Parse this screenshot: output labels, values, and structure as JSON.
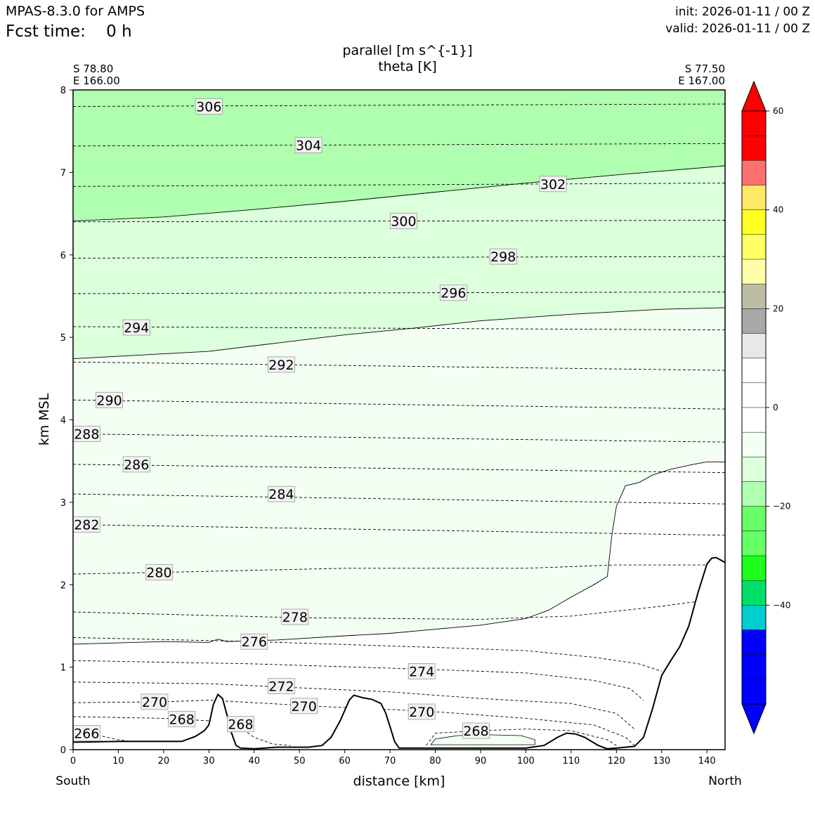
{
  "header": {
    "model": "MPAS-8.3.0 for AMPS",
    "fcst_time": "Fcst time:    0 h",
    "init": "init: 2026-01-11 / 00 Z",
    "valid": "valid: 2026-01-11 / 00 Z"
  },
  "chart_data": {
    "type": "contour-cross-section",
    "title_line1": "parallel [m s^{-1}]",
    "title_line2": "theta [K]",
    "xlabel": "distance [km]",
    "ylabel": "km MSL",
    "xlim": [
      0,
      144
    ],
    "ylim": [
      0,
      8
    ],
    "x_ticks": [
      0,
      10,
      20,
      30,
      40,
      50,
      60,
      70,
      80,
      90,
      100,
      110,
      120,
      130,
      140
    ],
    "y_ticks": [
      0,
      1,
      2,
      3,
      4,
      5,
      6,
      7,
      8
    ],
    "endpoints": {
      "left": {
        "lat": "S 78.80",
        "lon": "E 166.00",
        "dir": "South"
      },
      "right": {
        "lat": "S 77.50",
        "lon": "E 167.00",
        "dir": "North"
      }
    },
    "fill_bands": [
      {
        "range": "-20 to -15",
        "color": "#b0ffb0"
      },
      {
        "range": "-15 to -10",
        "color": "#dcffdc"
      },
      {
        "range": "-10 to -5",
        "color": "#f2fff2"
      },
      {
        "range": "-5 to 0",
        "color": "#ffffff"
      }
    ],
    "fill_boundaries": [
      {
        "name": "-15",
        "points": [
          [
            0,
            6.41
          ],
          [
            20,
            6.46
          ],
          [
            40,
            6.55
          ],
          [
            60,
            6.65
          ],
          [
            80,
            6.76
          ],
          [
            100,
            6.87
          ],
          [
            120,
            6.97
          ],
          [
            144,
            7.08
          ]
        ]
      },
      {
        "name": "-10",
        "points": [
          [
            0,
            4.74
          ],
          [
            20,
            4.8
          ],
          [
            30,
            4.83
          ],
          [
            45,
            4.93
          ],
          [
            60,
            5.03
          ],
          [
            75,
            5.11
          ],
          [
            90,
            5.2
          ],
          [
            110,
            5.28
          ],
          [
            130,
            5.34
          ],
          [
            144,
            5.36
          ]
        ]
      },
      {
        "name": "-5",
        "points": [
          [
            0,
            1.28
          ],
          [
            20,
            1.31
          ],
          [
            30,
            1.3
          ],
          [
            32,
            1.34
          ],
          [
            34,
            1.31
          ],
          [
            45,
            1.33
          ],
          [
            60,
            1.38
          ],
          [
            70,
            1.41
          ],
          [
            80,
            1.46
          ],
          [
            90,
            1.51
          ],
          [
            100,
            1.59
          ],
          [
            105,
            1.69
          ],
          [
            110,
            1.85
          ],
          [
            115,
            2.0
          ],
          [
            118,
            2.1
          ],
          [
            119,
            2.6
          ],
          [
            120,
            2.95
          ],
          [
            122,
            3.2
          ],
          [
            125,
            3.24
          ],
          [
            128,
            3.33
          ],
          [
            132,
            3.4
          ],
          [
            137,
            3.46
          ],
          [
            140,
            3.49
          ],
          [
            144,
            3.49
          ]
        ]
      }
    ],
    "theta_lines": [
      {
        "label": "306",
        "points": [
          [
            0,
            7.8
          ],
          [
            144,
            7.83
          ]
        ],
        "label_at": [
          30,
          7.8
        ]
      },
      {
        "label": "304",
        "points": [
          [
            0,
            7.32
          ],
          [
            144,
            7.35
          ]
        ],
        "label_at": [
          52,
          7.33
        ]
      },
      {
        "label": "302",
        "points": [
          [
            0,
            6.83
          ],
          [
            144,
            6.87
          ]
        ],
        "label_at": [
          106,
          6.86
        ]
      },
      {
        "label": "300",
        "points": [
          [
            0,
            6.4
          ],
          [
            144,
            6.42
          ]
        ],
        "label_at": [
          73,
          6.41
        ]
      },
      {
        "label": "298",
        "points": [
          [
            0,
            5.96
          ],
          [
            144,
            5.98
          ]
        ],
        "label_at": [
          95,
          5.98
        ]
      },
      {
        "label": "296",
        "points": [
          [
            0,
            5.53
          ],
          [
            144,
            5.55
          ]
        ],
        "label_at": [
          84,
          5.54
        ]
      },
      {
        "label": "294",
        "points": [
          [
            0,
            5.13
          ],
          [
            144,
            5.09
          ]
        ],
        "label_at": [
          14,
          5.12
        ]
      },
      {
        "label": "292",
        "points": [
          [
            0,
            4.7
          ],
          [
            144,
            4.6
          ]
        ],
        "label_at": [
          46,
          4.67
        ]
      },
      {
        "label": "290",
        "points": [
          [
            0,
            4.24
          ],
          [
            144,
            4.13
          ]
        ],
        "label_at": [
          8,
          4.24
        ]
      },
      {
        "label": "288",
        "points": [
          [
            0,
            3.83
          ],
          [
            144,
            3.73
          ]
        ],
        "label_at": [
          3,
          3.83
        ]
      },
      {
        "label": "286",
        "points": [
          [
            0,
            3.46
          ],
          [
            144,
            3.36
          ]
        ],
        "label_at": [
          14,
          3.46
        ]
      },
      {
        "label": "284",
        "points": [
          [
            0,
            3.1
          ],
          [
            144,
            2.98
          ]
        ],
        "label_at": [
          46,
          3.1
        ]
      },
      {
        "label": "282",
        "points": [
          [
            0,
            2.73
          ],
          [
            144,
            2.6
          ]
        ],
        "label_at": [
          3,
          2.73
        ]
      },
      {
        "label": "280",
        "points": [
          [
            0,
            2.13
          ],
          [
            20,
            2.15
          ],
          [
            60,
            2.2
          ],
          [
            100,
            2.2
          ],
          [
            120,
            2.24
          ],
          [
            144,
            2.24
          ]
        ],
        "label_at": [
          19,
          2.15
        ]
      },
      {
        "label": "278",
        "points": [
          [
            0,
            1.67
          ],
          [
            50,
            1.6
          ],
          [
            90,
            1.58
          ],
          [
            110,
            1.62
          ],
          [
            130,
            1.74
          ],
          [
            144,
            1.84
          ]
        ],
        "label_at": [
          49,
          1.61
        ]
      },
      {
        "label": "276",
        "points": [
          [
            0,
            1.36
          ],
          [
            40,
            1.31
          ],
          [
            80,
            1.24
          ],
          [
            100,
            1.2
          ],
          [
            115,
            1.12
          ],
          [
            125,
            1.04
          ],
          [
            130,
            0.95
          ]
        ],
        "label_at": [
          40,
          1.31
        ]
      },
      {
        "label": "274",
        "points": [
          [
            0,
            1.08
          ],
          [
            40,
            1.04
          ],
          [
            80,
            0.97
          ],
          [
            100,
            0.93
          ],
          [
            115,
            0.84
          ],
          [
            123,
            0.74
          ],
          [
            126,
            0.6
          ]
        ],
        "label_at": [
          77,
          0.95
        ]
      },
      {
        "label": "272",
        "points": [
          [
            0,
            0.82
          ],
          [
            30,
            0.8
          ],
          [
            50,
            0.75
          ],
          [
            70,
            0.7
          ],
          [
            90,
            0.62
          ],
          [
            110,
            0.56
          ],
          [
            120,
            0.44
          ],
          [
            124,
            0.25
          ]
        ],
        "label_at": [
          46,
          0.77
        ]
      },
      {
        "label": "270",
        "points": [
          [
            0,
            0.57
          ],
          [
            20,
            0.58
          ],
          [
            30,
            0.6
          ],
          [
            40,
            0.57
          ],
          [
            56,
            0.52
          ],
          [
            65,
            0.5
          ],
          [
            80,
            0.46
          ],
          [
            100,
            0.38
          ],
          [
            115,
            0.3
          ],
          [
            122,
            0.15
          ],
          [
            124,
            0.05
          ]
        ],
        "label_at": [
          18,
          0.58
        ]
      },
      {
        "label": "270",
        "points": [],
        "label_at": [
          51,
          0.53
        ]
      },
      {
        "label": "270",
        "points": [],
        "label_at": [
          77,
          0.46
        ]
      },
      {
        "label": "268",
        "points": [
          [
            0,
            0.4
          ],
          [
            20,
            0.38
          ],
          [
            30,
            0.35
          ],
          [
            36,
            0.3
          ],
          [
            40,
            0.15
          ],
          [
            44,
            0.07
          ],
          [
            48,
            0.05
          ]
        ],
        "label_at": [
          24,
          0.37
        ]
      },
      {
        "label": "268",
        "points": [],
        "label_at": [
          37,
          0.31
        ]
      },
      {
        "label": "268",
        "points": [
          [
            78,
            0.05
          ],
          [
            80,
            0.2
          ],
          [
            90,
            0.23
          ],
          [
            100,
            0.25
          ],
          [
            110,
            0.23
          ],
          [
            118,
            0.12
          ],
          [
            120,
            0.05
          ]
        ],
        "label_at": [
          89,
          0.23
        ]
      },
      {
        "label": "266",
        "points": [
          [
            0,
            0.2
          ],
          [
            5,
            0.18
          ],
          [
            10,
            0.12
          ],
          [
            15,
            0.08
          ]
        ],
        "label_at": [
          3,
          0.2
        ]
      }
    ],
    "small_contour": {
      "points": [
        [
          79,
          0.06
        ],
        [
          80,
          0.13
        ],
        [
          85,
          0.17
        ],
        [
          92,
          0.18
        ],
        [
          99,
          0.17
        ],
        [
          102,
          0.12
        ],
        [
          102,
          0.06
        ]
      ]
    },
    "terrain": [
      [
        0,
        0.09
      ],
      [
        10,
        0.1
      ],
      [
        20,
        0.1
      ],
      [
        24,
        0.1
      ],
      [
        27,
        0.16
      ],
      [
        29,
        0.23
      ],
      [
        30,
        0.3
      ],
      [
        31,
        0.55
      ],
      [
        32,
        0.67
      ],
      [
        33,
        0.62
      ],
      [
        34,
        0.42
      ],
      [
        35,
        0.2
      ],
      [
        36,
        0.05
      ],
      [
        37,
        0.02
      ],
      [
        40,
        0.01
      ],
      [
        45,
        0.03
      ],
      [
        52,
        0.03
      ],
      [
        55,
        0.05
      ],
      [
        57,
        0.15
      ],
      [
        59,
        0.35
      ],
      [
        61,
        0.6
      ],
      [
        62,
        0.66
      ],
      [
        64,
        0.63
      ],
      [
        66,
        0.61
      ],
      [
        68,
        0.56
      ],
      [
        69,
        0.45
      ],
      [
        70,
        0.28
      ],
      [
        71,
        0.1
      ],
      [
        72,
        0.02
      ],
      [
        80,
        0.02
      ],
      [
        90,
        0.02
      ],
      [
        100,
        0.02
      ],
      [
        104,
        0.05
      ],
      [
        107,
        0.15
      ],
      [
        109,
        0.2
      ],
      [
        111,
        0.19
      ],
      [
        113,
        0.15
      ],
      [
        116,
        0.05
      ],
      [
        118,
        0.01
      ],
      [
        120,
        0.02
      ],
      [
        124,
        0.04
      ],
      [
        126,
        0.15
      ],
      [
        128,
        0.5
      ],
      [
        130,
        0.9
      ],
      [
        132,
        1.08
      ],
      [
        134,
        1.25
      ],
      [
        136,
        1.5
      ],
      [
        138,
        1.9
      ],
      [
        140,
        2.25
      ],
      [
        141,
        2.32
      ],
      [
        142,
        2.33
      ],
      [
        143,
        2.3
      ],
      [
        144,
        2.27
      ]
    ],
    "colorbar": {
      "ticks": [
        60,
        40,
        20,
        0,
        -20,
        -40
      ],
      "range": [
        -60,
        60
      ],
      "step": 5,
      "bands": [
        {
          "from": -55,
          "to": -50,
          "color": "#0000ff"
        },
        {
          "from": -50,
          "to": -45,
          "color": "#0000ff"
        },
        {
          "from": -45,
          "to": -40,
          "color": "#00cdcd"
        },
        {
          "from": -40,
          "to": -35,
          "color": "#00e066"
        },
        {
          "from": -35,
          "to": -30,
          "color": "#1eff1e"
        },
        {
          "from": -30,
          "to": -25,
          "color": "#66ff66"
        },
        {
          "from": -25,
          "to": -20,
          "color": "#66ff66"
        },
        {
          "from": -20,
          "to": -15,
          "color": "#b0ffb0"
        },
        {
          "from": -15,
          "to": -10,
          "color": "#dcffdc"
        },
        {
          "from": -10,
          "to": -5,
          "color": "#f2fff2"
        },
        {
          "from": -5,
          "to": 0,
          "color": "#ffffff"
        },
        {
          "from": 0,
          "to": 5,
          "color": "#ffffff"
        },
        {
          "from": 5,
          "to": 10,
          "color": "#ffffff"
        },
        {
          "from": 10,
          "to": 15,
          "color": "#e8e8e8"
        },
        {
          "from": 15,
          "to": 20,
          "color": "#a9a9a9"
        },
        {
          "from": 20,
          "to": 25,
          "color": "#bdbda5"
        },
        {
          "from": 25,
          "to": 30,
          "color": "#ffffaa"
        },
        {
          "from": 30,
          "to": 35,
          "color": "#ffff66"
        },
        {
          "from": 35,
          "to": 40,
          "color": "#ffff22"
        },
        {
          "from": 40,
          "to": 45,
          "color": "#ffe866"
        },
        {
          "from": 45,
          "to": 50,
          "color": "#ff7070"
        },
        {
          "from": 50,
          "to": 55,
          "color": "#ff0000"
        }
      ],
      "under_color": "#0000ff",
      "over_color": "#ff0000"
    }
  }
}
